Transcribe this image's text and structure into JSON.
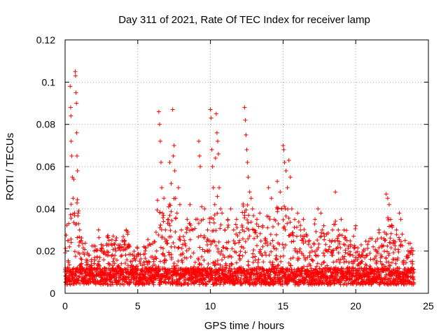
{
  "chart_data": {
    "type": "scatter",
    "title": "Day 311 of 2021, Rate Of TEC Index for receiver lamp",
    "xlabel": "GPS time / hours",
    "ylabel": "ROTI / TECUs",
    "xlim": [
      0,
      25
    ],
    "ylim": [
      0,
      0.12
    ],
    "xticks": [
      0,
      5,
      10,
      15,
      20,
      25
    ],
    "xtick_labels": [
      "0",
      "5",
      "10",
      "15",
      "20",
      "25"
    ],
    "yticks": [
      0,
      0.02,
      0.04,
      0.06,
      0.08,
      0.1,
      0.12
    ],
    "ytick_labels": [
      "0",
      "0.02",
      "0.04",
      "0.06",
      "0.08",
      "0.1",
      "0.12"
    ],
    "grid": true,
    "marker": "+",
    "color": "#ff0000",
    "series": [
      {
        "name": "ROTI",
        "points": [
          [
            0.1,
            0.007
          ],
          [
            0.2,
            0.025
          ],
          [
            0.25,
            0.033
          ],
          [
            0.3,
            0.022
          ],
          [
            0.35,
            0.098
          ],
          [
            0.38,
            0.088
          ],
          [
            0.4,
            0.084
          ],
          [
            0.42,
            0.072
          ],
          [
            0.45,
            0.065
          ],
          [
            0.5,
            0.055
          ],
          [
            0.55,
            0.045
          ],
          [
            0.6,
            0.054
          ],
          [
            0.65,
            0.038
          ],
          [
            0.7,
            0.105
          ],
          [
            0.72,
            0.103
          ],
          [
            0.75,
            0.095
          ],
          [
            0.78,
            0.09
          ],
          [
            0.8,
            0.076
          ],
          [
            0.82,
            0.065
          ],
          [
            0.85,
            0.058
          ],
          [
            0.9,
            0.038
          ],
          [
            1.0,
            0.03
          ],
          [
            1.1,
            0.025
          ],
          [
            1.2,
            0.012
          ],
          [
            1.4,
            0.008
          ],
          [
            1.6,
            0.006
          ],
          [
            1.8,
            0.015
          ],
          [
            2.0,
            0.008
          ],
          [
            2.2,
            0.017
          ],
          [
            2.3,
            0.03
          ],
          [
            2.5,
            0.02
          ],
          [
            2.7,
            0.012
          ],
          [
            2.9,
            0.018
          ],
          [
            3.1,
            0.01
          ],
          [
            3.3,
            0.015
          ],
          [
            3.5,
            0.02
          ],
          [
            3.7,
            0.012
          ],
          [
            3.9,
            0.018
          ],
          [
            4.1,
            0.025
          ],
          [
            4.2,
            0.03
          ],
          [
            4.3,
            0.028
          ],
          [
            4.5,
            0.015
          ],
          [
            4.7,
            0.01
          ],
          [
            4.9,
            0.008
          ],
          [
            5.1,
            0.006
          ],
          [
            5.3,
            0.007
          ],
          [
            5.5,
            0.012
          ],
          [
            5.7,
            0.009
          ],
          [
            5.9,
            0.012
          ],
          [
            6.1,
            0.015
          ],
          [
            6.3,
            0.02
          ],
          [
            6.45,
            0.086
          ],
          [
            6.5,
            0.08
          ],
          [
            6.55,
            0.072
          ],
          [
            6.6,
            0.062
          ],
          [
            6.65,
            0.05
          ],
          [
            6.7,
            0.038
          ],
          [
            6.8,
            0.045
          ],
          [
            6.9,
            0.03
          ],
          [
            7.0,
            0.025
          ],
          [
            7.1,
            0.035
          ],
          [
            7.2,
            0.062
          ],
          [
            7.3,
            0.052
          ],
          [
            7.4,
            0.087
          ],
          [
            7.45,
            0.065
          ],
          [
            7.5,
            0.07
          ],
          [
            7.55,
            0.058
          ],
          [
            7.6,
            0.045
          ],
          [
            7.7,
            0.038
          ],
          [
            7.8,
            0.05
          ],
          [
            7.9,
            0.042
          ],
          [
            8.0,
            0.03
          ],
          [
            8.2,
            0.025
          ],
          [
            8.4,
            0.035
          ],
          [
            8.6,
            0.042
          ],
          [
            8.8,
            0.03
          ],
          [
            9.0,
            0.035
          ],
          [
            9.2,
            0.072
          ],
          [
            9.25,
            0.065
          ],
          [
            9.3,
            0.06
          ],
          [
            9.4,
            0.041
          ],
          [
            9.5,
            0.035
          ],
          [
            9.6,
            0.04
          ],
          [
            9.8,
            0.03
          ],
          [
            9.9,
            0.025
          ],
          [
            10.0,
            0.087
          ],
          [
            10.05,
            0.083
          ],
          [
            10.1,
            0.068
          ],
          [
            10.15,
            0.06
          ],
          [
            10.2,
            0.05
          ],
          [
            10.3,
            0.042
          ],
          [
            10.35,
            0.064
          ],
          [
            10.4,
            0.085
          ],
          [
            10.45,
            0.076
          ],
          [
            10.5,
            0.072
          ],
          [
            10.55,
            0.066
          ],
          [
            10.6,
            0.05
          ],
          [
            10.7,
            0.04
          ],
          [
            10.8,
            0.038
          ],
          [
            11.0,
            0.03
          ],
          [
            11.2,
            0.035
          ],
          [
            11.4,
            0.04
          ],
          [
            11.6,
            0.03
          ],
          [
            11.8,
            0.035
          ],
          [
            12.0,
            0.025
          ],
          [
            12.2,
            0.03
          ],
          [
            12.35,
            0.088
          ],
          [
            12.4,
            0.082
          ],
          [
            12.45,
            0.075
          ],
          [
            12.5,
            0.068
          ],
          [
            12.55,
            0.062
          ],
          [
            12.6,
            0.055
          ],
          [
            12.7,
            0.048
          ],
          [
            12.8,
            0.045
          ],
          [
            12.9,
            0.04
          ],
          [
            13.0,
            0.03
          ],
          [
            13.2,
            0.035
          ],
          [
            13.4,
            0.038
          ],
          [
            13.6,
            0.032
          ],
          [
            13.8,
            0.025
          ],
          [
            14.0,
            0.05
          ],
          [
            14.2,
            0.045
          ],
          [
            14.4,
            0.035
          ],
          [
            14.6,
            0.053
          ],
          [
            14.8,
            0.048
          ],
          [
            14.9,
            0.04
          ],
          [
            15.0,
            0.07
          ],
          [
            15.05,
            0.068
          ],
          [
            15.1,
            0.062
          ],
          [
            15.2,
            0.058
          ],
          [
            15.3,
            0.05
          ],
          [
            15.4,
            0.063
          ],
          [
            15.5,
            0.055
          ],
          [
            15.6,
            0.04
          ],
          [
            15.8,
            0.035
          ],
          [
            16.0,
            0.038
          ],
          [
            16.2,
            0.03
          ],
          [
            16.4,
            0.035
          ],
          [
            16.6,
            0.028
          ],
          [
            16.8,
            0.025
          ],
          [
            17.0,
            0.02
          ],
          [
            17.2,
            0.035
          ],
          [
            17.4,
            0.04
          ],
          [
            17.6,
            0.038
          ],
          [
            17.8,
            0.032
          ],
          [
            18.0,
            0.028
          ],
          [
            18.2,
            0.025
          ],
          [
            18.4,
            0.03
          ],
          [
            18.6,
            0.048
          ],
          [
            18.8,
            0.03
          ],
          [
            19.0,
            0.035
          ],
          [
            19.2,
            0.03
          ],
          [
            19.4,
            0.025
          ],
          [
            19.6,
            0.018
          ],
          [
            19.8,
            0.012
          ],
          [
            20.0,
            0.032
          ],
          [
            20.2,
            0.018
          ],
          [
            20.4,
            0.015
          ],
          [
            20.6,
            0.012
          ],
          [
            20.8,
            0.018
          ],
          [
            21.0,
            0.026
          ],
          [
            21.2,
            0.022
          ],
          [
            21.4,
            0.02
          ],
          [
            21.6,
            0.03
          ],
          [
            21.8,
            0.022
          ],
          [
            22.0,
            0.025
          ],
          [
            22.1,
            0.047
          ],
          [
            22.2,
            0.045
          ],
          [
            22.3,
            0.042
          ],
          [
            22.4,
            0.035
          ],
          [
            22.5,
            0.032
          ],
          [
            22.6,
            0.025
          ],
          [
            22.8,
            0.03
          ],
          [
            23.0,
            0.038
          ],
          [
            23.1,
            0.035
          ],
          [
            23.2,
            0.028
          ],
          [
            23.4,
            0.025
          ],
          [
            23.6,
            0.02
          ],
          [
            23.8,
            0.015
          ],
          [
            24.0,
            0.01
          ]
        ]
      }
    ]
  }
}
